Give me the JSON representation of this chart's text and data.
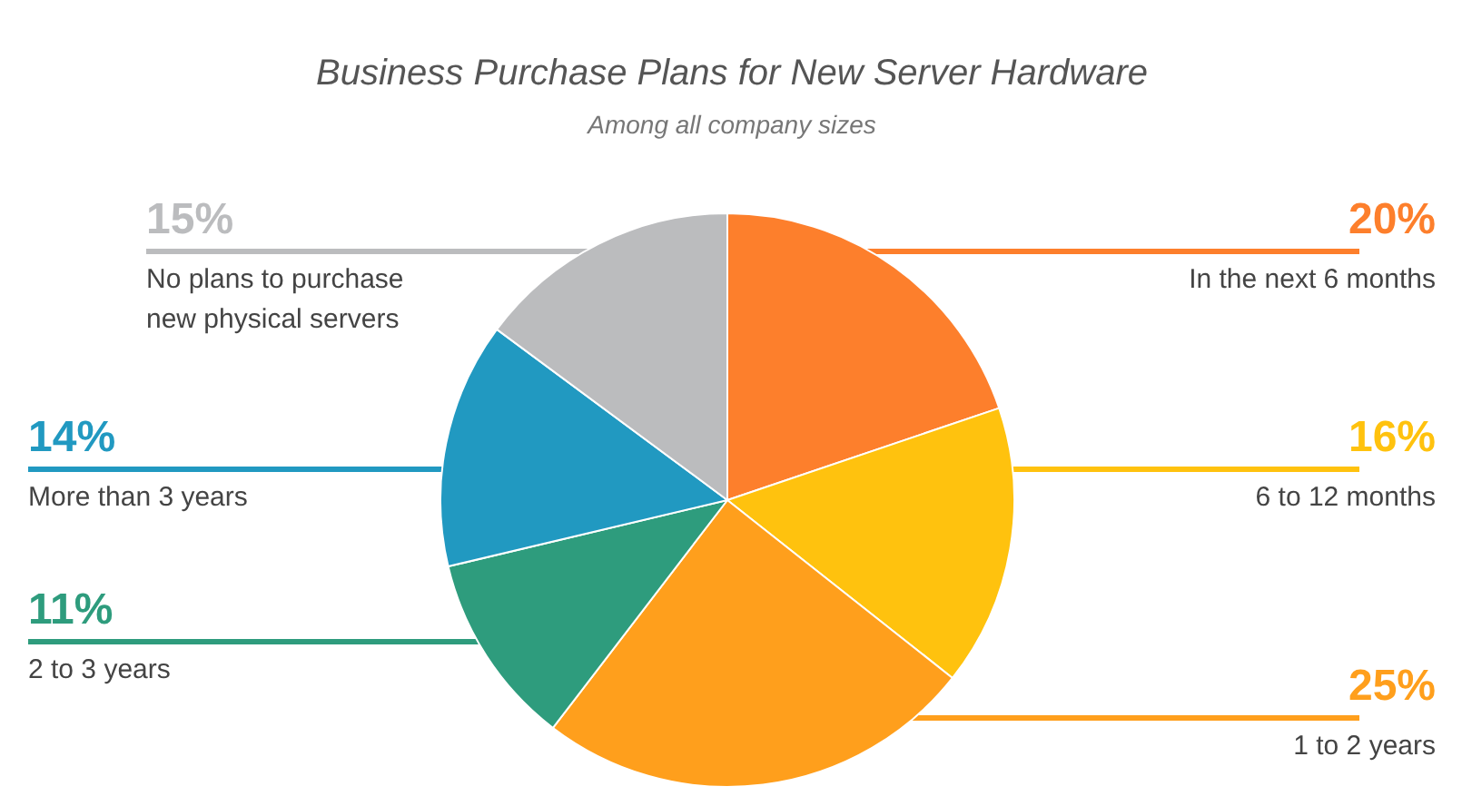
{
  "chart_data": {
    "type": "pie",
    "title": "Business Purchase Plans for New Server Hardware",
    "subtitle": "Among all company sizes",
    "categories": [
      "In the next 6 months",
      "6 to 12 months",
      "1 to 2 years",
      "2 to 3 years",
      "More than 3 years",
      "No plans to purchase new physical servers"
    ],
    "values": [
      20,
      16,
      25,
      11,
      14,
      15
    ],
    "value_labels": [
      "20%",
      "16%",
      "25%",
      "11%",
      "14%",
      "15%"
    ],
    "colors": [
      "#fd7f2c",
      "#ffc20e",
      "#ff9f1c",
      "#2e9c7d",
      "#2199c1",
      "#bbbcbe"
    ]
  }
}
